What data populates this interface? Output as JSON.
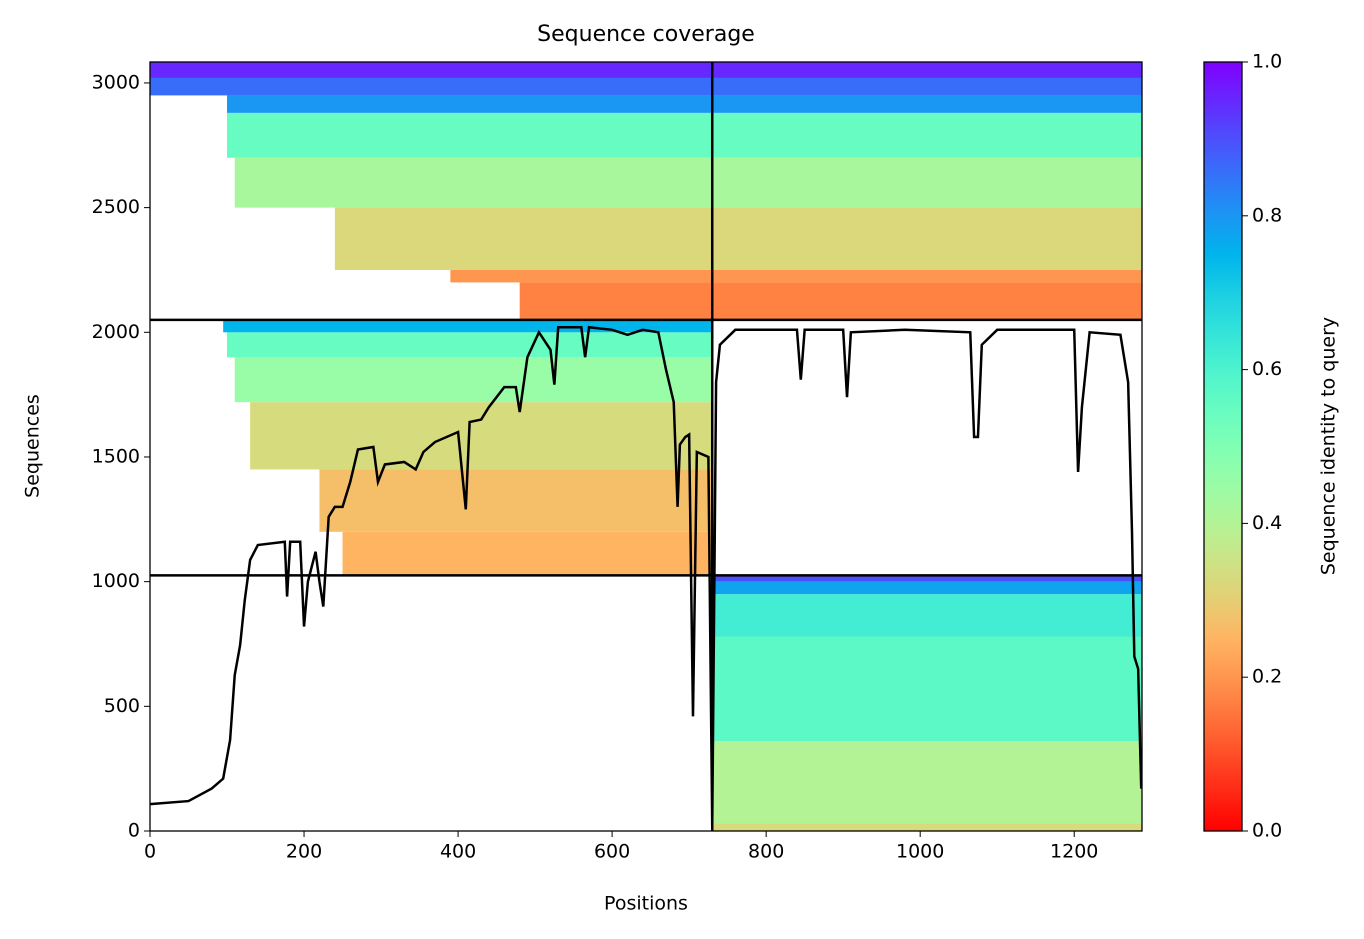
{
  "chart_data": {
    "type": "coverage",
    "title": "Sequence coverage",
    "xlabel": "Positions",
    "ylabel": "Sequences",
    "colorbar_label": "Sequence identity to query",
    "colormap": "rainbow_r",
    "clim": [
      0,
      1
    ],
    "cticks": [
      {
        "value": 0,
        "label": "0.0"
      },
      {
        "value": 0.2,
        "label": "0.2"
      },
      {
        "value": 0.4,
        "label": "0.4"
      },
      {
        "value": 0.6,
        "label": "0.6"
      },
      {
        "value": 0.8,
        "label": "0.8"
      },
      {
        "value": 1,
        "label": "1.0"
      }
    ],
    "xlim": [
      0,
      1288
    ],
    "ylim": [
      0,
      3084
    ],
    "xticks": [
      0,
      200,
      400,
      600,
      800,
      1000,
      1200
    ],
    "yticks": [
      0,
      500,
      1000,
      1500,
      2000,
      2500,
      3000
    ],
    "bands": [
      {
        "x": [
          730,
          1288
        ],
        "y": [
          0,
          30
        ],
        "identity": 0.33
      },
      {
        "x": [
          730,
          1288
        ],
        "y": [
          30,
          360
        ],
        "identity": 0.4
      },
      {
        "x": [
          730,
          1288
        ],
        "y": [
          360,
          780
        ],
        "identity": 0.57
      },
      {
        "x": [
          730,
          1288
        ],
        "y": [
          780,
          950
        ],
        "identity": 0.62
      },
      {
        "x": [
          730,
          1288
        ],
        "y": [
          950,
          1000
        ],
        "identity": 0.78
      },
      {
        "x": [
          730,
          1288
        ],
        "y": [
          1000,
          1025
        ],
        "identity": 0.9
      },
      {
        "x": [
          250,
          730
        ],
        "y": [
          1025,
          1200
        ],
        "identity": 0.25
      },
      {
        "x": [
          220,
          730
        ],
        "y": [
          1200,
          1450
        ],
        "identity": 0.27
      },
      {
        "x": [
          130,
          730
        ],
        "y": [
          1450,
          1720
        ],
        "identity": 0.33
      },
      {
        "x": [
          110,
          730
        ],
        "y": [
          1720,
          1900
        ],
        "identity": 0.45
      },
      {
        "x": [
          100,
          730
        ],
        "y": [
          1900,
          2000
        ],
        "identity": 0.55
      },
      {
        "x": [
          95,
          730
        ],
        "y": [
          2000,
          2050
        ],
        "identity": 0.75
      },
      {
        "x": [
          480,
          1288
        ],
        "y": [
          2050,
          2200
        ],
        "identity": 0.17
      },
      {
        "x": [
          390,
          1288
        ],
        "y": [
          2200,
          2250
        ],
        "identity": 0.2
      },
      {
        "x": [
          240,
          1288
        ],
        "y": [
          2250,
          2500
        ],
        "identity": 0.32
      },
      {
        "x": [
          110,
          1288
        ],
        "y": [
          2500,
          2700
        ],
        "identity": 0.42
      },
      {
        "x": [
          100,
          1288
        ],
        "y": [
          2700,
          2880
        ],
        "identity": 0.55
      },
      {
        "x": [
          100,
          1288
        ],
        "y": [
          2880,
          2950
        ],
        "identity": 0.8
      },
      {
        "x": [
          0,
          1288
        ],
        "y": [
          2950,
          3020
        ],
        "identity": 0.86
      },
      {
        "x": [
          0,
          1288
        ],
        "y": [
          3020,
          3084
        ],
        "identity": 0.95
      }
    ],
    "boundaries": {
      "x": [
        730
      ],
      "y": [
        1025,
        2050
      ]
    },
    "coverage": {
      "color": "#000000",
      "x": [
        0,
        50,
        80,
        95,
        104,
        110,
        117,
        123,
        130,
        140,
        175,
        178,
        182,
        195,
        200,
        205,
        215,
        220,
        225,
        232,
        240,
        250,
        260,
        270,
        290,
        296,
        305,
        330,
        345,
        355,
        370,
        400,
        410,
        415,
        430,
        440,
        460,
        475,
        480,
        490,
        505,
        520,
        525,
        530,
        560,
        565,
        570,
        600,
        620,
        640,
        660,
        670,
        680,
        685,
        688,
        695,
        700,
        705,
        710,
        725,
        730,
        735,
        740,
        760,
        840,
        845,
        850,
        900,
        905,
        910,
        980,
        1065,
        1070,
        1075,
        1080,
        1100,
        1200,
        1205,
        1210,
        1220,
        1260,
        1270,
        1275,
        1278,
        1283,
        1287
      ],
      "values": [
        108,
        120,
        170,
        210,
        365,
        625,
        745,
        925,
        1087,
        1147,
        1160,
        940,
        1160,
        1160,
        820,
        1000,
        1120,
        1000,
        900,
        1260,
        1300,
        1300,
        1400,
        1530,
        1540,
        1400,
        1470,
        1480,
        1450,
        1520,
        1560,
        1600,
        1290,
        1640,
        1650,
        1700,
        1780,
        1780,
        1680,
        1900,
        2000,
        1930,
        1790,
        2020,
        2020,
        1900,
        2020,
        2010,
        1990,
        2010,
        2000,
        1850,
        1720,
        1300,
        1550,
        1580,
        1590,
        460,
        1520,
        1500,
        20,
        1800,
        1950,
        2010,
        2010,
        1810,
        2010,
        2010,
        1740,
        2000,
        2010,
        2000,
        1580,
        1580,
        1950,
        2010,
        2010,
        1440,
        1700,
        2000,
        1990,
        1800,
        1200,
        700,
        650,
        170
      ]
    }
  }
}
